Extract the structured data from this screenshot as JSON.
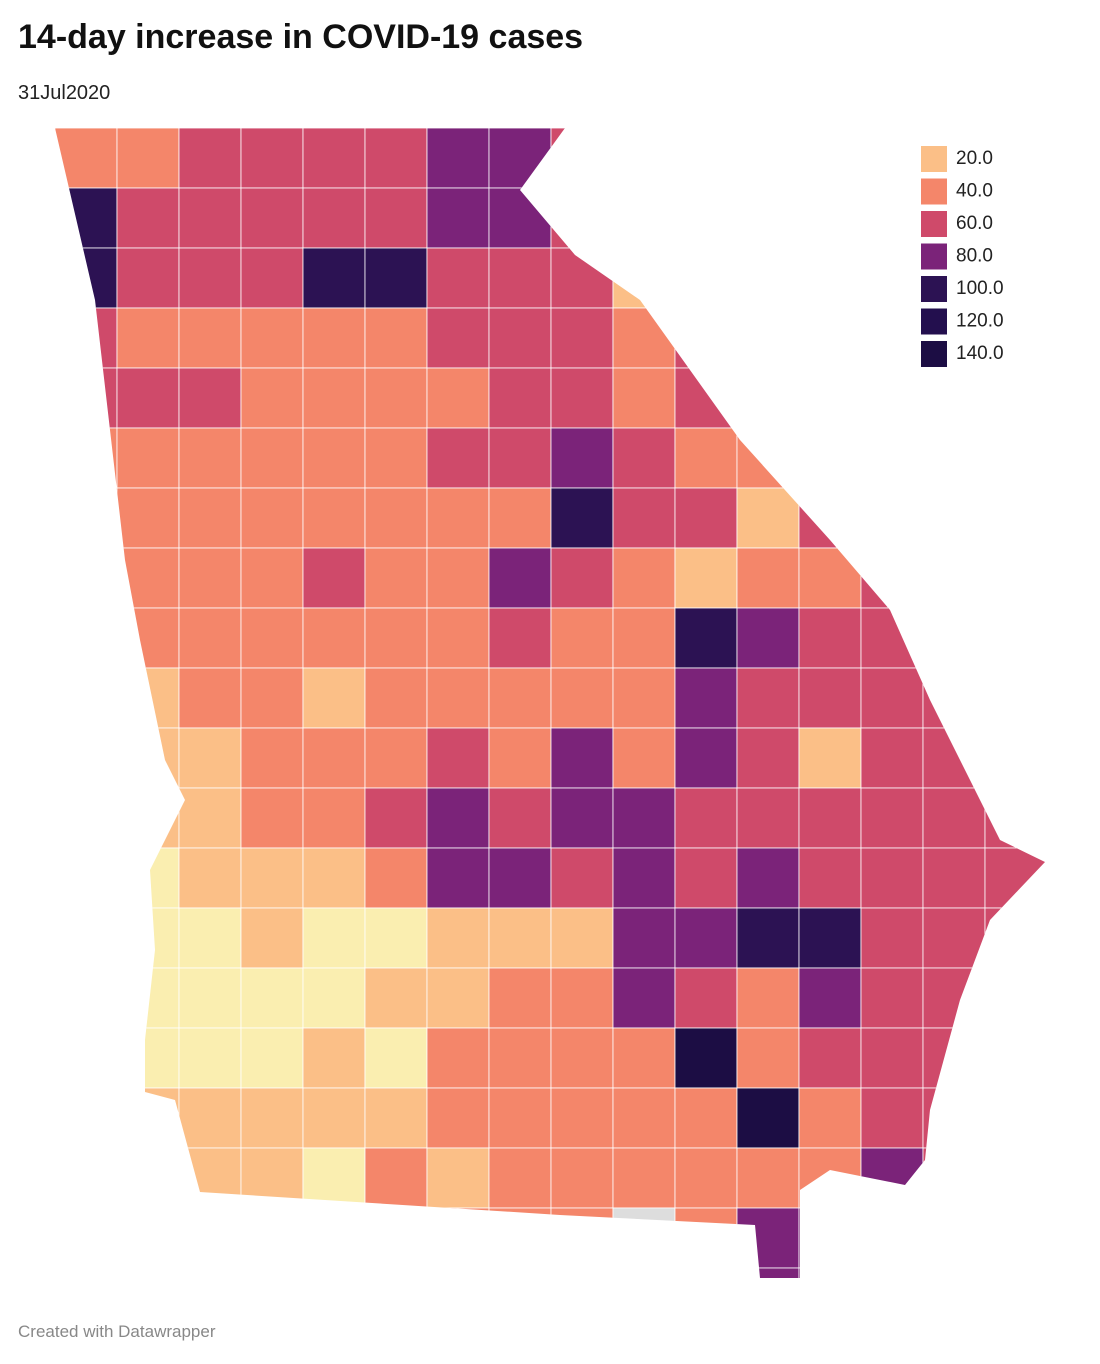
{
  "title": "14-day increase in COVID-19 cases",
  "subtitle": "31Jul2020",
  "legend": [
    {
      "label": "20.0",
      "color": "#fbbf87"
    },
    {
      "label": "40.0",
      "color": "#f4866a"
    },
    {
      "label": "60.0",
      "color": "#cf4a6a"
    },
    {
      "label": "80.0",
      "color": "#7b2379"
    },
    {
      "label": "100.0",
      "color": "#2c1253"
    },
    {
      "label": "120.0",
      "color": "#230f4e"
    },
    {
      "label": "140.0",
      "color": "#1c0d44"
    }
  ],
  "footer": "Created with Datawrapper"
}
